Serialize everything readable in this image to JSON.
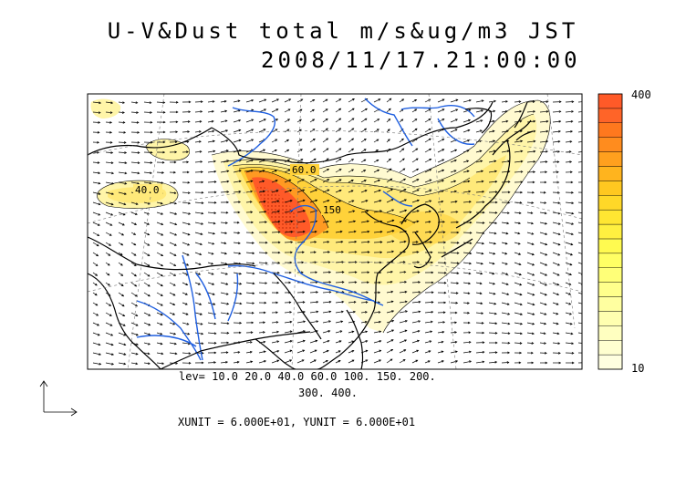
{
  "title": {
    "line1": "U-V&Dust total m/s&ug/m3 JST",
    "line2": "2008/11/17.21:00:00"
  },
  "levels_text": {
    "line1": "lev= 10.0 20.0 40.0 60.0 100. 150. 200.",
    "line2": "300. 400."
  },
  "units_text": "XUNIT = 6.000E+01, YUNIT = 6.000E+01",
  "contour_labels": [
    "40.0",
    "150",
    "60.0"
  ],
  "colorbar": {
    "max_label": "400",
    "min_label": "10",
    "colors": [
      "#ffffe0",
      "#ffffd0",
      "#ffffc0",
      "#ffffb0",
      "#ffffa0",
      "#ffff8c",
      "#ffff78",
      "#ffff64",
      "#fffa50",
      "#fff040",
      "#ffe632",
      "#ffd828",
      "#ffc820",
      "#ffb41e",
      "#ffa01e",
      "#ff8c1e",
      "#ff781e",
      "#ff6428",
      "#ff5a28"
    ]
  },
  "colors": {
    "dust_low": "#fffad0",
    "dust_mid": "#ffe97a",
    "dust_high": "#ffd23a",
    "dust_peak": "#ff5a28",
    "river": "#1f5fe0"
  }
}
